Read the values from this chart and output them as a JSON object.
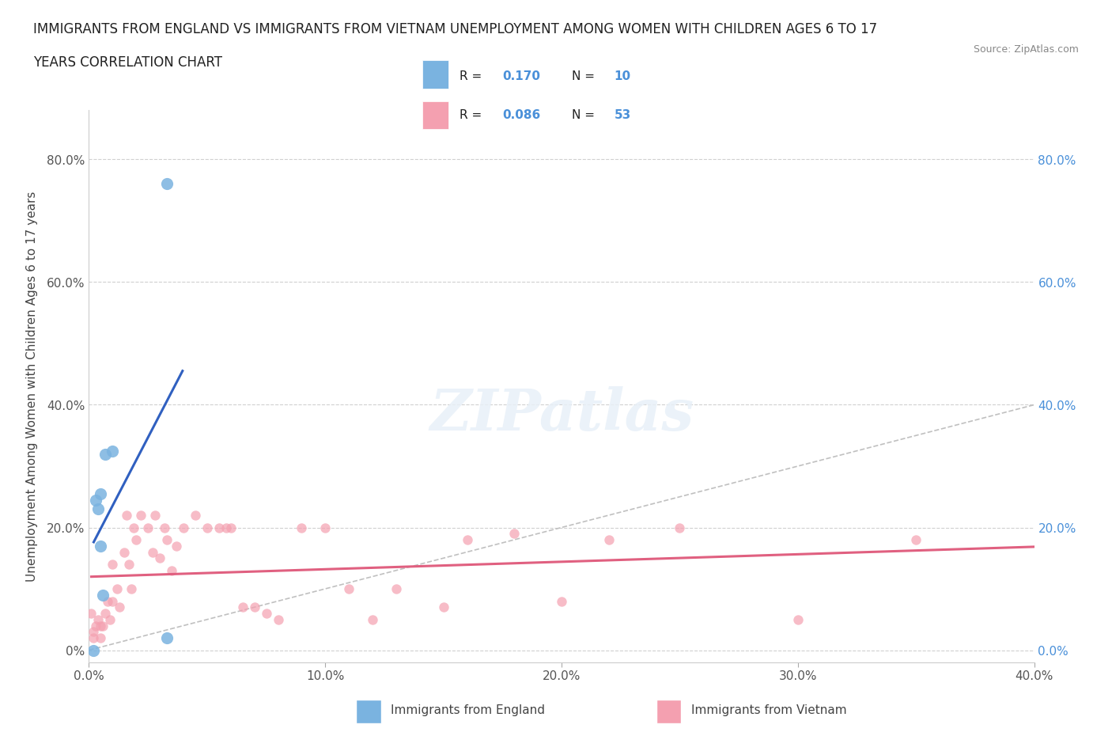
{
  "title_line1": "IMMIGRANTS FROM ENGLAND VS IMMIGRANTS FROM VIETNAM UNEMPLOYMENT AMONG WOMEN WITH CHILDREN AGES 6 TO 17",
  "title_line2": "YEARS CORRELATION CHART",
  "source": "Source: ZipAtlas.com",
  "ylabel": "Unemployment Among Women with Children Ages 6 to 17 years",
  "xlabel": "",
  "xlim": [
    0,
    0.4
  ],
  "ylim": [
    -0.02,
    0.88
  ],
  "yticks": [
    0.0,
    0.2,
    0.4,
    0.6,
    0.8
  ],
  "xticks": [
    0.0,
    0.1,
    0.2,
    0.3,
    0.4
  ],
  "england_R": 0.17,
  "england_N": 10,
  "vietnam_R": 0.086,
  "vietnam_N": 53,
  "england_color": "#7ab3e0",
  "vietnam_color": "#f4a0b0",
  "england_trend_color": "#3060c0",
  "vietnam_trend_color": "#e06080",
  "diagonal_color": "#c0c0c0",
  "england_x": [
    0.002,
    0.003,
    0.004,
    0.005,
    0.005,
    0.006,
    0.007,
    0.01,
    0.033,
    0.033
  ],
  "england_y": [
    0.0,
    0.245,
    0.23,
    0.255,
    0.17,
    0.09,
    0.32,
    0.325,
    0.02,
    0.76
  ],
  "vietnam_x": [
    0.001,
    0.002,
    0.002,
    0.003,
    0.004,
    0.005,
    0.005,
    0.006,
    0.007,
    0.008,
    0.009,
    0.01,
    0.01,
    0.012,
    0.013,
    0.015,
    0.016,
    0.017,
    0.018,
    0.019,
    0.02,
    0.022,
    0.025,
    0.027,
    0.028,
    0.03,
    0.032,
    0.033,
    0.035,
    0.037,
    0.04,
    0.045,
    0.05,
    0.055,
    0.058,
    0.06,
    0.065,
    0.07,
    0.075,
    0.08,
    0.09,
    0.1,
    0.11,
    0.12,
    0.13,
    0.15,
    0.16,
    0.18,
    0.2,
    0.22,
    0.25,
    0.3,
    0.35
  ],
  "vietnam_y": [
    0.06,
    0.02,
    0.03,
    0.04,
    0.05,
    0.02,
    0.04,
    0.04,
    0.06,
    0.08,
    0.05,
    0.14,
    0.08,
    0.1,
    0.07,
    0.16,
    0.22,
    0.14,
    0.1,
    0.2,
    0.18,
    0.22,
    0.2,
    0.16,
    0.22,
    0.15,
    0.2,
    0.18,
    0.13,
    0.17,
    0.2,
    0.22,
    0.2,
    0.2,
    0.2,
    0.2,
    0.07,
    0.07,
    0.06,
    0.05,
    0.2,
    0.2,
    0.1,
    0.05,
    0.1,
    0.07,
    0.18,
    0.19,
    0.08,
    0.18,
    0.2,
    0.05,
    0.18
  ],
  "watermark": "ZIPatlas",
  "background_color": "#ffffff",
  "grid_color": "#d0d0d0"
}
